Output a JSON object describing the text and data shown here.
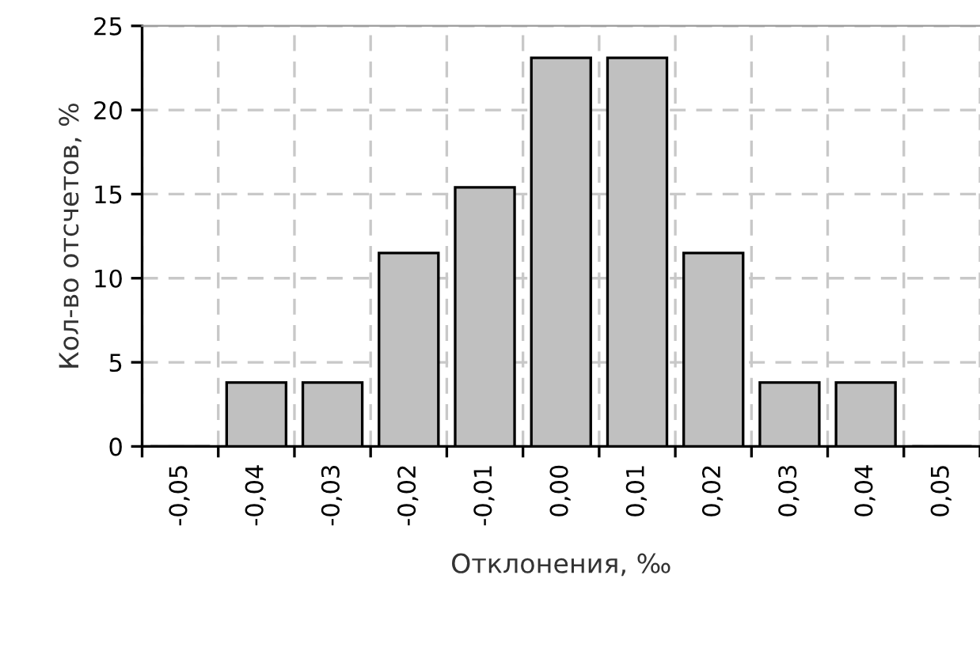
{
  "chart_data": {
    "type": "bar",
    "xlabel": "Отклонения, ‰",
    "ylabel": "Кол-во отсчетов, %",
    "categories": [
      "-0,05",
      "-0,04",
      "-0,03",
      "-0,02",
      "-0,01",
      "0,00",
      "0,01",
      "0,02",
      "0,03",
      "0,04",
      "0,05"
    ],
    "values": [
      0,
      3.8,
      3.8,
      11.5,
      15.4,
      23.1,
      23.1,
      11.5,
      3.8,
      3.8,
      0
    ],
    "color": "#c0c0c0",
    "ylim": [
      0,
      25
    ],
    "yticks": [
      0,
      5,
      10,
      15,
      20,
      25
    ],
    "grid": true,
    "line_style": "dashed"
  }
}
